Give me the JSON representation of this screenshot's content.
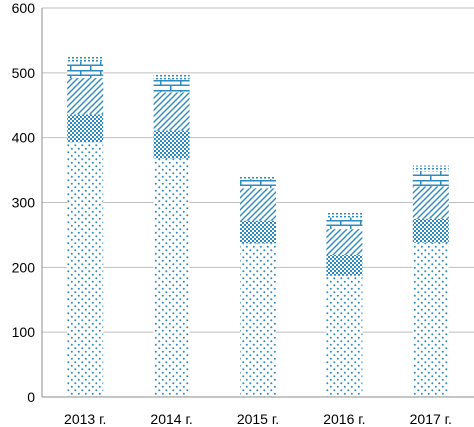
{
  "chart_data": {
    "type": "bar",
    "stacked": true,
    "categories": [
      "2013 г.",
      "2014 г.",
      "2015 г.",
      "2016 г.",
      "2017 г."
    ],
    "series": [
      {
        "pattern": "dots",
        "values": [
          393,
          368,
          237,
          187,
          238
        ]
      },
      {
        "pattern": "cross-hatch",
        "values": [
          43,
          43,
          35,
          32,
          37
        ]
      },
      {
        "pattern": "diagonal-hatch",
        "values": [
          56,
          59,
          50,
          40,
          50
        ]
      },
      {
        "pattern": "brick",
        "values": [
          25,
          20,
          14,
          18,
          23
        ]
      },
      {
        "pattern": "dotted-cap",
        "values": [
          8,
          8,
          5,
          8,
          9
        ]
      }
    ],
    "ylim": [
      0,
      600
    ],
    "yticks": [
      "0",
      "100",
      "200",
      "300",
      "400",
      "500",
      "600"
    ],
    "grid": true,
    "legend": "none",
    "colors": {
      "bar": "#2e8bc0",
      "grid": "#bfbfbf",
      "axis": "#8c8c8c",
      "text": "#000000"
    }
  }
}
